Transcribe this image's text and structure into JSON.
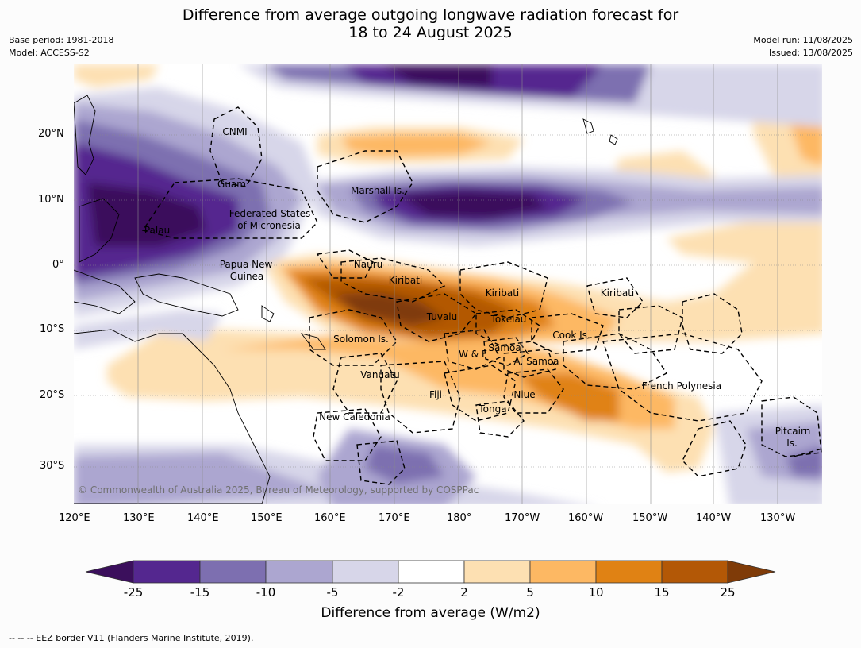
{
  "header": {
    "title_line1": "Difference from average outgoing longwave radiation forecast for",
    "title_line2": "18 to 24 August 2025",
    "base_period": "Base period: 1981-2018",
    "model": "Model: ACCESS-S2",
    "model_run": "Model run: 11/08/2025",
    "issued": "Issued: 13/08/2025"
  },
  "map": {
    "lat_labels": [
      "20°N",
      "10°N",
      "0°",
      "10°S",
      "20°S",
      "30°S"
    ],
    "lon_labels": [
      "120°E",
      "130°E",
      "140°E",
      "150°E",
      "160°E",
      "170°E",
      "180°",
      "170°W",
      "160°W",
      "150°W",
      "140°W",
      "130°W"
    ],
    "places": {
      "cnmi": "CNMI",
      "guam": "Guam",
      "marshall": "Marshall Is.",
      "fsm_1": "Federated States",
      "fsm_2": "of Micronesia",
      "palau": "Palau",
      "png_1": "Papua New",
      "png_2": "Guinea",
      "nauru": "Nauru",
      "kiribati_w": "Kiribati",
      "kiribati_c": "Kiribati",
      "kiribati_e": "Kiribati",
      "tuvalu": "Tuvalu",
      "tokelau": "Tokelau",
      "solomon": "Solomon Is.",
      "samoa": "Samoa",
      "wf": "W & F",
      "asamoa": "A. Samoa",
      "cook": "Cook Is.",
      "vanuatu": "Vanuatu",
      "fiji": "Fiji",
      "niue": "Niue",
      "tonga": "Tonga",
      "new_caledonia": "New Caledonia",
      "french_polynesia": "French Polynesia",
      "pitcairn_1": "Pitcairn",
      "pitcairn_2": "Is."
    },
    "copyright": "© Commonwealth of Australia 2025, Bureau of Meteorology, supported by COSPPac"
  },
  "colorbar": {
    "ticks": [
      "-25",
      "-15",
      "-10",
      "-5",
      "-2",
      "2",
      "5",
      "10",
      "15",
      "25"
    ],
    "colors": [
      "#3b0f5c",
      "#54278f",
      "#7d6fb0",
      "#aca6d0",
      "#d7d6e9",
      "#ffffff",
      "#fde0b2",
      "#fdb863",
      "#e08214",
      "#b35806",
      "#7f3b08"
    ],
    "label": "Difference from average (W/m2)"
  },
  "footer": {
    "eez_note": "--  --  -- EEZ border V11 (Flanders Marine Institute, 2019)."
  }
}
